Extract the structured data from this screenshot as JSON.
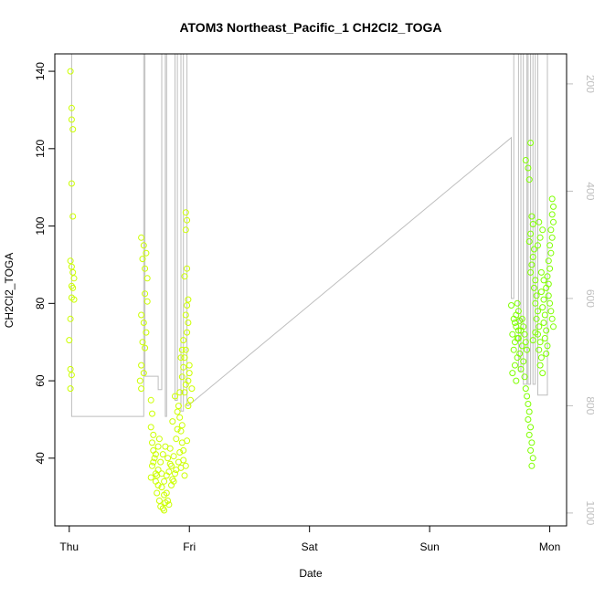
{
  "chart_data": {
    "type": "scatter",
    "title": "ATOM3 Northeast_Pacific_1 CH2Cl2_TOGA",
    "xlabel": "Date",
    "ylabel": "CH2Cl2_TOGA",
    "x_ticks": [
      {
        "day": 0,
        "label": "Thu"
      },
      {
        "day": 1,
        "label": "Fri"
      },
      {
        "day": 2,
        "label": "Sat"
      },
      {
        "day": 3,
        "label": "Sun"
      },
      {
        "day": 4,
        "label": "Mon"
      }
    ],
    "xlim": [
      -0.12,
      4.14
    ],
    "ylim": [
      22.5,
      144.5
    ],
    "y_ticks": [
      40,
      60,
      80,
      100,
      120,
      140
    ],
    "y2_ticks": [
      200,
      400,
      600,
      800,
      1000
    ],
    "y2_inverted": true,
    "y2_range_at_plot_edges": [
      144,
      1024
    ],
    "points_color_early": "#ccff00",
    "points_color_late": "#7fff00",
    "line_color": "#bebebe",
    "series_points": [
      [
        0.01,
        140
      ],
      [
        0.02,
        130.5
      ],
      [
        0.02,
        127.5
      ],
      [
        0.03,
        125
      ],
      [
        0.02,
        111
      ],
      [
        0.03,
        102.5
      ],
      [
        0.01,
        91
      ],
      [
        0.02,
        89.5
      ],
      [
        0.03,
        88
      ],
      [
        0.04,
        86.5
      ],
      [
        0.02,
        84.5
      ],
      [
        0.03,
        84
      ],
      [
        0.02,
        81.5
      ],
      [
        0.04,
        81
      ],
      [
        0.01,
        76
      ],
      [
        0.0,
        70.5
      ],
      [
        0.01,
        63
      ],
      [
        0.02,
        61.5
      ],
      [
        0.01,
        58
      ],
      [
        0.6,
        97
      ],
      [
        0.62,
        95
      ],
      [
        0.64,
        93
      ],
      [
        0.61,
        91.5
      ],
      [
        0.63,
        89
      ],
      [
        0.65,
        86.5
      ],
      [
        0.6,
        77
      ],
      [
        0.62,
        75
      ],
      [
        0.64,
        72.5
      ],
      [
        0.61,
        70
      ],
      [
        0.63,
        68.5
      ],
      [
        0.6,
        64
      ],
      [
        0.62,
        62
      ],
      [
        0.59,
        60
      ],
      [
        0.63,
        82.5
      ],
      [
        0.65,
        80.5
      ],
      [
        0.6,
        58
      ],
      [
        0.68,
        55
      ],
      [
        0.69,
        51.5
      ],
      [
        0.68,
        48
      ],
      [
        0.7,
        46
      ],
      [
        0.69,
        44
      ],
      [
        0.7,
        42
      ],
      [
        0.71,
        40
      ],
      [
        0.69,
        38
      ],
      [
        0.72,
        36
      ],
      [
        0.68,
        35
      ],
      [
        0.72,
        34
      ],
      [
        0.74,
        33
      ],
      [
        0.73,
        31
      ],
      [
        0.75,
        29
      ],
      [
        0.76,
        27.5
      ],
      [
        0.78,
        27
      ],
      [
        0.8,
        28.5
      ],
      [
        0.79,
        30.5
      ],
      [
        0.77,
        32.5
      ],
      [
        0.74,
        37
      ],
      [
        0.76,
        39
      ],
      [
        0.78,
        41
      ],
      [
        0.8,
        43
      ],
      [
        0.75,
        45
      ],
      [
        0.82,
        40
      ],
      [
        0.84,
        38.5
      ],
      [
        0.83,
        36.5
      ],
      [
        0.81,
        35.5
      ],
      [
        0.86,
        34.5
      ],
      [
        0.88,
        36
      ],
      [
        0.85,
        38
      ],
      [
        0.87,
        40.5
      ],
      [
        0.84,
        42.5
      ],
      [
        0.89,
        45
      ],
      [
        0.9,
        47.5
      ],
      [
        0.86,
        49.5
      ],
      [
        0.9,
        52
      ],
      [
        0.88,
        56
      ],
      [
        0.91,
        53.5
      ],
      [
        0.92,
        50.5
      ],
      [
        0.93,
        47
      ],
      [
        0.94,
        44
      ],
      [
        0.92,
        41.5
      ],
      [
        0.95,
        39.5
      ],
      [
        0.93,
        37.5
      ],
      [
        0.96,
        35.5
      ],
      [
        0.94,
        48.5
      ],
      [
        0.97,
        38
      ],
      [
        0.7,
        39
      ],
      [
        0.72,
        41
      ],
      [
        0.74,
        43
      ],
      [
        0.73,
        35.5
      ],
      [
        0.77,
        36
      ],
      [
        0.79,
        34
      ],
      [
        0.81,
        31
      ],
      [
        0.82,
        29
      ],
      [
        0.79,
        26.5
      ],
      [
        0.85,
        33
      ],
      [
        0.83,
        28
      ],
      [
        0.87,
        34
      ],
      [
        0.89,
        37
      ],
      [
        0.91,
        39
      ],
      [
        0.95,
        42
      ],
      [
        0.98,
        44.5
      ],
      [
        0.96,
        57
      ],
      [
        0.97,
        59
      ],
      [
        0.94,
        61
      ],
      [
        0.95,
        63.5
      ],
      [
        0.96,
        66
      ],
      [
        0.97,
        68
      ],
      [
        0.95,
        70.5
      ],
      [
        0.98,
        72.5
      ],
      [
        0.99,
        75
      ],
      [
        0.97,
        77
      ],
      [
        0.98,
        79.5
      ],
      [
        0.99,
        81
      ],
      [
        0.96,
        87
      ],
      [
        0.98,
        89
      ],
      [
        0.97,
        99
      ],
      [
        0.98,
        101.5
      ],
      [
        0.97,
        103.5
      ],
      [
        1.0,
        62
      ],
      [
        1.0,
        64
      ],
      [
        0.99,
        60
      ],
      [
        0.93,
        66
      ],
      [
        0.94,
        68
      ],
      [
        0.92,
        57
      ],
      [
        1.01,
        55
      ],
      [
        0.99,
        53.5
      ],
      [
        1.02,
        58
      ],
      [
        3.68,
        79.5
      ],
      [
        3.7,
        76
      ],
      [
        3.72,
        74
      ],
      [
        3.69,
        72
      ],
      [
        3.71,
        70
      ],
      [
        3.7,
        68
      ],
      [
        3.73,
        66
      ],
      [
        3.71,
        64
      ],
      [
        3.69,
        62
      ],
      [
        3.72,
        60
      ],
      [
        3.74,
        78
      ],
      [
        3.75,
        75.5
      ],
      [
        3.76,
        73
      ],
      [
        3.74,
        71
      ],
      [
        3.77,
        69
      ],
      [
        3.75,
        67
      ],
      [
        3.78,
        65
      ],
      [
        3.76,
        63
      ],
      [
        3.79,
        61
      ],
      [
        3.8,
        58
      ],
      [
        3.81,
        56
      ],
      [
        3.82,
        54
      ],
      [
        3.83,
        52
      ],
      [
        3.82,
        50
      ],
      [
        3.84,
        48
      ],
      [
        3.83,
        46
      ],
      [
        3.85,
        44
      ],
      [
        3.84,
        42
      ],
      [
        3.86,
        40
      ],
      [
        3.85,
        38
      ],
      [
        3.8,
        117
      ],
      [
        3.82,
        115
      ],
      [
        3.84,
        121.5
      ],
      [
        3.83,
        112
      ],
      [
        3.85,
        102.5
      ],
      [
        3.86,
        100.5
      ],
      [
        3.84,
        98
      ],
      [
        3.83,
        96
      ],
      [
        3.87,
        94
      ],
      [
        3.86,
        92
      ],
      [
        3.85,
        90
      ],
      [
        3.84,
        88
      ],
      [
        3.88,
        86
      ],
      [
        3.87,
        84
      ],
      [
        3.89,
        82
      ],
      [
        3.88,
        80
      ],
      [
        3.9,
        78
      ],
      [
        3.89,
        76
      ],
      [
        3.91,
        74
      ],
      [
        3.9,
        72
      ],
      [
        3.92,
        70
      ],
      [
        3.91,
        68
      ],
      [
        3.93,
        66
      ],
      [
        3.92,
        64
      ],
      [
        3.94,
        62
      ],
      [
        3.93,
        83
      ],
      [
        3.95,
        81
      ],
      [
        3.94,
        79
      ],
      [
        3.96,
        77
      ],
      [
        3.95,
        75
      ],
      [
        3.97,
        73
      ],
      [
        3.96,
        71
      ],
      [
        3.98,
        69
      ],
      [
        3.97,
        67
      ],
      [
        3.99,
        85
      ],
      [
        3.98,
        87
      ],
      [
        4.0,
        89
      ],
      [
        3.99,
        91
      ],
      [
        4.01,
        93
      ],
      [
        4.0,
        95
      ],
      [
        4.02,
        97
      ],
      [
        4.01,
        99
      ],
      [
        4.03,
        101
      ],
      [
        4.02,
        103
      ],
      [
        4.03,
        105
      ],
      [
        4.02,
        107
      ],
      [
        4.0,
        80
      ],
      [
        4.01,
        78
      ],
      [
        4.02,
        76
      ],
      [
        4.03,
        74
      ],
      [
        3.88,
        72.5
      ],
      [
        3.86,
        70.5
      ],
      [
        3.9,
        95
      ],
      [
        3.92,
        97
      ],
      [
        3.94,
        99
      ],
      [
        3.91,
        101
      ],
      [
        3.93,
        88
      ],
      [
        3.95,
        86
      ],
      [
        3.97,
        84
      ],
      [
        3.99,
        82
      ],
      [
        3.78,
        74
      ],
      [
        3.79,
        72
      ],
      [
        3.8,
        70
      ],
      [
        3.81,
        68
      ],
      [
        3.77,
        76
      ],
      [
        3.73,
        80
      ],
      [
        3.72,
        77
      ],
      [
        3.71,
        75
      ],
      [
        3.74,
        73
      ],
      [
        3.73,
        71
      ]
    ],
    "line_path_day_y2": [
      [
        0.02,
        144
      ],
      [
        0.02,
        820
      ],
      [
        0.62,
        820
      ],
      [
        0.62,
        144
      ],
      [
        0.63,
        144
      ],
      [
        0.63,
        745
      ],
      [
        0.74,
        745
      ],
      [
        0.74,
        770
      ],
      [
        0.77,
        770
      ],
      [
        0.77,
        144
      ],
      [
        0.8,
        144
      ],
      [
        0.8,
        820
      ],
      [
        0.81,
        820
      ],
      [
        0.81,
        144
      ],
      [
        0.88,
        144
      ],
      [
        0.88,
        790
      ],
      [
        0.9,
        790
      ],
      [
        0.9,
        144
      ],
      [
        0.93,
        144
      ],
      [
        0.93,
        810
      ],
      [
        0.95,
        810
      ],
      [
        0.95,
        144
      ],
      [
        0.98,
        144
      ],
      [
        0.98,
        800
      ],
      [
        0.99,
        800
      ],
      [
        3.68,
        300
      ],
      [
        3.68,
        600
      ],
      [
        3.7,
        600
      ],
      [
        3.7,
        144
      ],
      [
        3.74,
        144
      ],
      [
        3.74,
        735
      ],
      [
        3.76,
        735
      ],
      [
        3.76,
        144
      ],
      [
        3.78,
        144
      ],
      [
        3.78,
        760
      ],
      [
        3.81,
        760
      ],
      [
        3.81,
        144
      ],
      [
        3.82,
        144
      ],
      [
        3.82,
        760
      ],
      [
        3.84,
        760
      ],
      [
        3.84,
        144
      ],
      [
        3.86,
        144
      ],
      [
        3.86,
        760
      ],
      [
        3.88,
        760
      ],
      [
        3.88,
        144
      ],
      [
        3.9,
        144
      ],
      [
        3.9,
        780
      ],
      [
        3.98,
        780
      ],
      [
        3.98,
        144
      ]
    ]
  }
}
